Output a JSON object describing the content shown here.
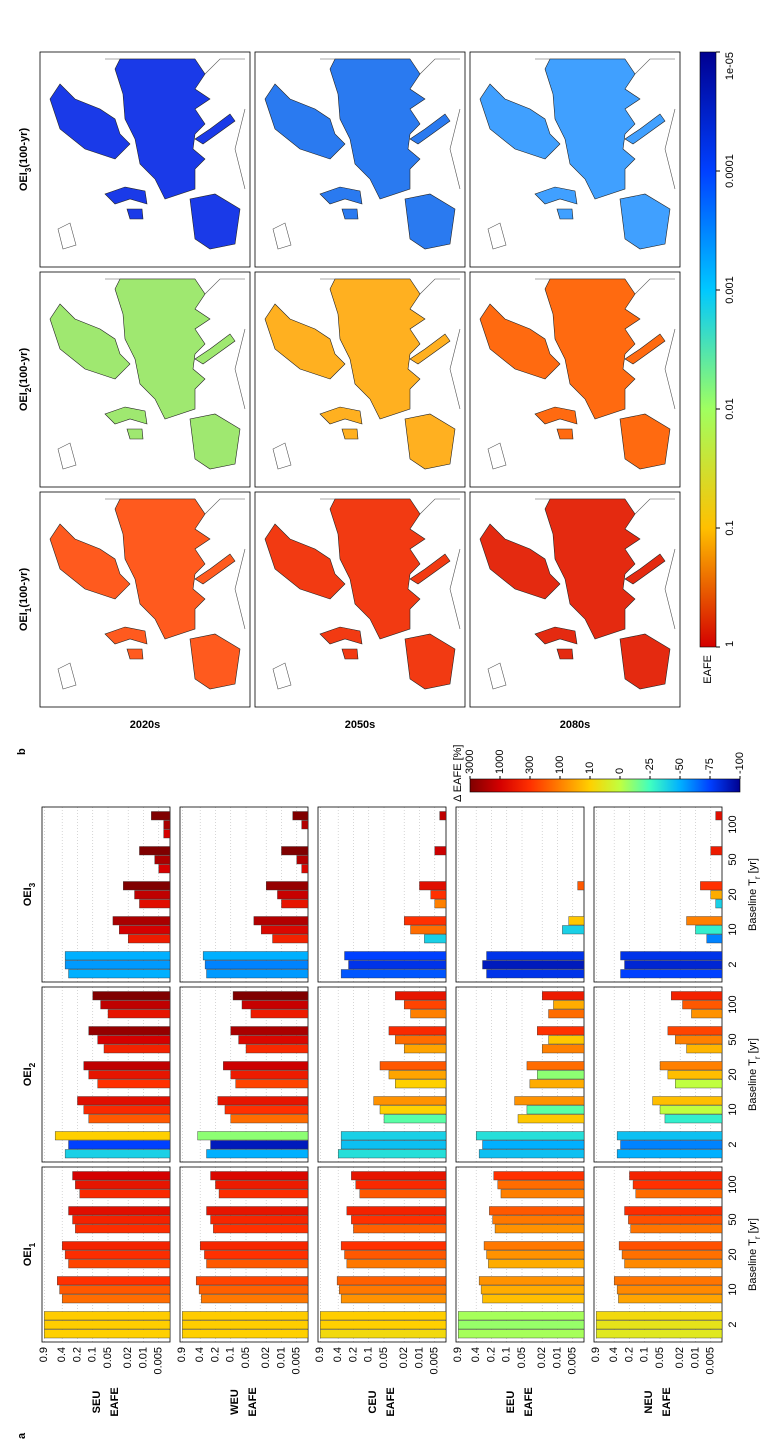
{
  "chart_data": [
    {
      "type": "bar",
      "label": "a",
      "columns": [
        {
          "title": "OEI",
          "sub": "1"
        },
        {
          "title": "OEI",
          "sub": "2"
        },
        {
          "title": "OEI",
          "sub": "3"
        }
      ],
      "categories": [
        2,
        10,
        20,
        50,
        100
      ],
      "xlabel": {
        "text": "Baseline T",
        "sub": "r",
        "suffix": " [yr]"
      },
      "ylabel": "EAFE",
      "log": true,
      "ylim": [
        0.003,
        1
      ],
      "yticks": [
        0.9,
        0.4,
        0.2,
        0.1,
        0.05,
        0.02,
        0.01,
        0.005
      ],
      "grid": true,
      "regions": [
        {
          "name": "SEU",
          "panels": [
            {
              "values": [
                0.9,
                0.9,
                0.9,
                0.4,
                0.45,
                0.5,
                0.3,
                0.35,
                0.4,
                0.22,
                0.25,
                0.3,
                0.18,
                0.22,
                0.25
              ],
              "delta": [
                10,
                12,
                15,
                150,
                200,
                300,
                250,
                350,
                500,
                350,
                500,
                800,
                400,
                700,
                1000
              ]
            },
            {
              "values": [
                0.35,
                0.3,
                0.55,
                0.12,
                0.15,
                0.2,
                0.08,
                0.12,
                0.15,
                0.06,
                0.08,
                0.12,
                0.05,
                0.07,
                0.1
              ],
              "delta": [
                -40,
                -75,
                10,
                200,
                400,
                800,
                300,
                700,
                1500,
                500,
                1000,
                2500,
                700,
                1500,
                3000
              ]
            },
            {
              "values": [
                0.3,
                0.35,
                0.35,
                0.02,
                0.03,
                0.04,
                0.012,
                0.015,
                0.025,
                0.005,
                0.006,
                0.012,
                0.004,
                0.004,
                0.007
              ],
              "delta": [
                -50,
                -55,
                -50,
                600,
                1000,
                2000,
                800,
                1500,
                3000,
                1000,
                2000,
                3000,
                1000,
                2000,
                3000
              ]
            }
          ]
        },
        {
          "name": "WEU",
          "panels": [
            {
              "values": [
                0.9,
                0.9,
                0.9,
                0.38,
                0.42,
                0.48,
                0.3,
                0.33,
                0.4,
                0.22,
                0.25,
                0.3,
                0.17,
                0.2,
                0.25
              ],
              "delta": [
                10,
                12,
                14,
                120,
                180,
                250,
                200,
                300,
                450,
                300,
                450,
                700,
                350,
                600,
                900
              ]
            },
            {
              "values": [
                0.3,
                0.25,
                0.45,
                0.1,
                0.13,
                0.18,
                0.08,
                0.1,
                0.14,
                0.05,
                0.07,
                0.1,
                0.04,
                0.06,
                0.09
              ],
              "delta": [
                -50,
                -90,
                -10,
                150,
                300,
                700,
                250,
                600,
                1200,
                400,
                900,
                2000,
                600,
                1300,
                3000
              ]
            },
            {
              "values": [
                0.3,
                0.32,
                0.35,
                0.015,
                0.025,
                0.035,
                0.01,
                0.012,
                0.02,
                0.004,
                0.005,
                0.01,
                0.003,
                0.004,
                0.006
              ],
              "delta": [
                -55,
                -60,
                -50,
                500,
                900,
                1800,
                700,
                1300,
                2500,
                900,
                1800,
                3000,
                900,
                1800,
                3000
              ]
            }
          ]
        },
        {
          "name": "CEU",
          "panels": [
            {
              "values": [
                0.9,
                0.9,
                0.9,
                0.35,
                0.38,
                0.42,
                0.27,
                0.3,
                0.35,
                0.2,
                0.22,
                0.27,
                0.15,
                0.18,
                0.22
              ],
              "delta": [
                8,
                10,
                12,
                80,
                120,
                180,
                120,
                200,
                300,
                180,
                300,
                500,
                200,
                400,
                700
              ]
            },
            {
              "values": [
                0.4,
                0.35,
                0.35,
                0.05,
                0.06,
                0.08,
                0.03,
                0.04,
                0.06,
                0.02,
                0.03,
                0.04,
                0.015,
                0.02,
                0.03
              ],
              "delta": [
                -35,
                -45,
                -40,
                -20,
                10,
                80,
                10,
                60,
                200,
                60,
                150,
                400,
                100,
                250,
                700
              ]
            },
            {
              "values": [
                0.35,
                0.25,
                0.3,
                0.008,
                0.015,
                0.02,
                0.005,
                0.006,
                0.01,
                0.003,
                0.003,
                0.005,
                0.003,
                0.003,
                0.004
              ],
              "delta": [
                -70,
                -80,
                -75,
                -40,
                150,
                300,
                100,
                300,
                800,
                200,
                500,
                1200,
                300,
                600,
                1500
              ]
            }
          ]
        },
        {
          "name": "EEU",
          "panels": [
            {
              "values": [
                0.9,
                0.9,
                0.9,
                0.3,
                0.32,
                0.35,
                0.23,
                0.25,
                0.28,
                0.17,
                0.19,
                0.22,
                0.13,
                0.15,
                0.18
              ],
              "delta": [
                -5,
                -8,
                -5,
                30,
                50,
                80,
                50,
                80,
                120,
                80,
                120,
                200,
                100,
                150,
                300
              ]
            },
            {
              "values": [
                0.35,
                0.3,
                0.4,
                0.06,
                0.04,
                0.07,
                0.035,
                0.025,
                0.04,
                0.02,
                0.015,
                0.025,
                0.015,
                0.012,
                0.02
              ],
              "delta": [
                -45,
                -50,
                -35,
                20,
                -20,
                80,
                50,
                -10,
                150,
                100,
                20,
                300,
                150,
                50,
                600
              ]
            },
            {
              "values": [
                0.25,
                0.3,
                0.25,
                0.003,
                0.008,
                0.006,
                0.003,
                0.003,
                0.004,
                0.003,
                0.003,
                0.003,
                0.003,
                0.003,
                0.003
              ],
              "delta": [
                -80,
                -90,
                -80,
                -100,
                -40,
                20,
                -100,
                30,
                200,
                -100,
                -100,
                100,
                -100,
                -100,
                -100
              ]
            }
          ]
        },
        {
          "name": "NEU",
          "panels": [
            {
              "values": [
                0.9,
                0.9,
                0.9,
                0.33,
                0.35,
                0.4,
                0.25,
                0.28,
                0.32,
                0.19,
                0.21,
                0.25,
                0.15,
                0.17,
                0.2
              ],
              "delta": [
                5,
                6,
                8,
                60,
                90,
                130,
                90,
                140,
                220,
                130,
                220,
                350,
                150,
                300,
                500
              ]
            },
            {
              "values": [
                0.35,
                0.3,
                0.35,
                0.04,
                0.05,
                0.07,
                0.025,
                0.035,
                0.05,
                0.015,
                0.025,
                0.035,
                0.012,
                0.018,
                0.03
              ],
              "delta": [
                -50,
                -60,
                -45,
                -30,
                0,
                30,
                0,
                30,
                100,
                40,
                100,
                250,
                80,
                200,
                500
              ]
            },
            {
              "values": [
                0.3,
                0.25,
                0.3,
                0.006,
                0.01,
                0.015,
                0.004,
                0.005,
                0.008,
                0.003,
                0.003,
                0.005,
                0.003,
                0.003,
                0.004
              ],
              "delta": [
                -75,
                -85,
                -80,
                -60,
                -30,
                100,
                -40,
                50,
                300,
                -100,
                100,
                600,
                -100,
                200,
                800
              ]
            }
          ]
        }
      ],
      "colorbar": {
        "title": "Δ EAFE [%]",
        "ticks": [
          3000,
          1000,
          300,
          100,
          10,
          0,
          -25,
          -50,
          -75,
          -100
        ],
        "colors": [
          "#800000",
          "#d40000",
          "#ff3000",
          "#ff8000",
          "#ffd000",
          "#c0ff40",
          "#40ffc0",
          "#00b0ff",
          "#0040ff",
          "#000090"
        ]
      }
    },
    {
      "type": "map",
      "label": "b",
      "columns": [
        {
          "title": "OEI",
          "sub": "1",
          "suffix": "(100-yr)"
        },
        {
          "title": "OEI",
          "sub": "2",
          "suffix": "(100-yr)"
        },
        {
          "title": "OEI",
          "sub": "3",
          "suffix": "(100-yr)"
        }
      ],
      "rows": [
        "2020s",
        "2050s",
        "2080s"
      ],
      "map_colors": [
        [
          "#ff5a1e",
          "#f23a12",
          "#e42a10"
        ],
        [
          "#9fe870",
          "#ffb020",
          "#ff6a10"
        ],
        [
          "#1a3ae8",
          "#2a7af0",
          "#40a0ff"
        ]
      ],
      "colorbar": {
        "title": "EAFE",
        "log": true,
        "ticks": [
          1,
          0.1,
          0.01,
          0.001,
          0.0001,
          {
            "value": 1e-05,
            "label": "1e-05"
          }
        ],
        "colors": [
          "#d40000",
          "#ffc000",
          "#a0ff60",
          "#00c8ff",
          "#0040ff",
          "#000090"
        ]
      }
    }
  ]
}
